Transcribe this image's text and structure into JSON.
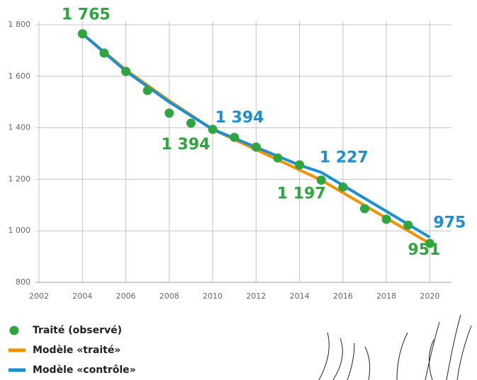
{
  "chart_data": {
    "type": "line",
    "xlim": [
      2002,
      2021
    ],
    "xticks": [
      2002,
      2004,
      2006,
      2008,
      2010,
      2012,
      2014,
      2016,
      2018,
      2020
    ],
    "ylim": [
      800,
      1800
    ],
    "yticks": [
      800,
      {
        "value": 1000,
        "label": "1 000"
      },
      {
        "value": 1200,
        "label": "1 200"
      },
      {
        "value": 1400,
        "label": "1 400"
      },
      {
        "value": 1600,
        "label": "1 600"
      },
      {
        "value": 1800,
        "label": "1 800"
      }
    ],
    "grid": true,
    "series": [
      {
        "name": "Traité (observé)",
        "color": "#2ea53f",
        "mode": "markers",
        "x": [
          2004,
          2005,
          2006,
          2007,
          2008,
          2009,
          2010,
          2011,
          2012,
          2013,
          2014,
          2015,
          2016,
          2017,
          2018,
          2019,
          2020
        ],
        "values": [
          1765,
          1690,
          1619,
          1545,
          1457,
          1418,
          1394,
          1363,
          1325,
          1283,
          1256,
          1197,
          1170,
          1086,
          1045,
          1022,
          951
        ],
        "value_labels": [
          "1 765",
          null,
          null,
          null,
          null,
          null,
          "1 394",
          null,
          null,
          null,
          null,
          "1 197",
          null,
          null,
          null,
          null,
          "951"
        ]
      },
      {
        "name": "Modèle «traité»",
        "color": "#f39200",
        "mode": "line",
        "x": [
          2004,
          2006,
          2008,
          2010,
          2015,
          2020
        ],
        "values": [
          1765,
          1625,
          1505,
          1394,
          1197,
          951
        ]
      },
      {
        "name": "Modèle «contrôle»",
        "color": "#1b8fd0",
        "mode": "line",
        "x": [
          2004,
          2006,
          2008,
          2010,
          2014,
          2015,
          2020
        ],
        "values": [
          1765,
          1620,
          1500,
          1394,
          1255,
          1227,
          975
        ],
        "value_labels": [
          null,
          null,
          null,
          "1 394",
          null,
          "1 227",
          "975"
        ]
      }
    ]
  }
}
